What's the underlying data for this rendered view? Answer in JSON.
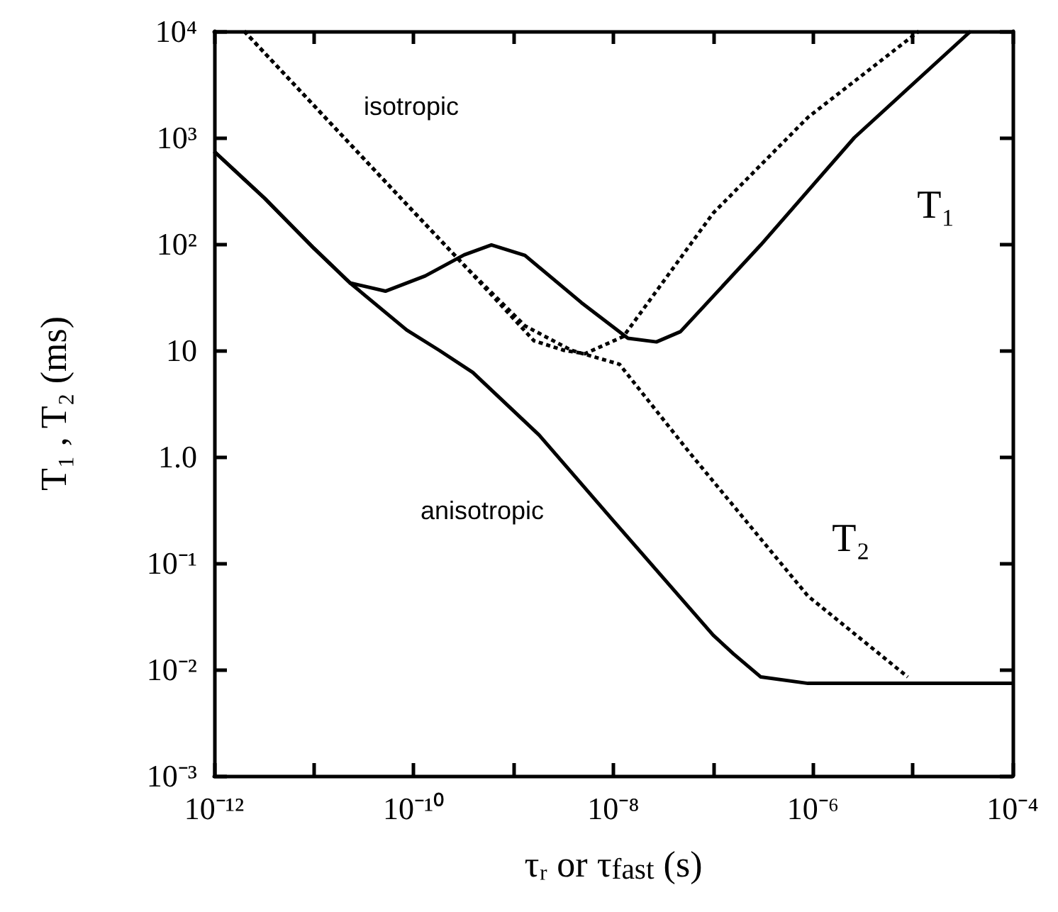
{
  "chart_data": {
    "type": "line",
    "xlabel": "τᵣ or τ$_{fast}$ (s)",
    "ylabel": "T₁ , T₂ (ms)",
    "log": "xy",
    "grid": false,
    "marker": "none",
    "xlim": [
      1e-12,
      0.0001
    ],
    "xticks": [
      {
        "value": 1e-12,
        "label": "10⁻¹²"
      },
      {
        "value": 1e-11,
        "label": null
      },
      {
        "value": 1e-10,
        "label": "10⁻¹⁰"
      },
      {
        "value": 1e-09,
        "label": null
      },
      {
        "value": 1e-08,
        "label": "10⁻⁸"
      },
      {
        "value": 1e-07,
        "label": null
      },
      {
        "value": 1e-06,
        "label": "10⁻⁶"
      },
      {
        "value": 1e-05,
        "label": null
      },
      {
        "value": 0.0001,
        "label": "10⁻⁴"
      }
    ],
    "ylim": [
      0.001,
      10000
    ],
    "yticks": [
      {
        "value": 0.001,
        "label": "10⁻³"
      },
      {
        "value": 0.01,
        "label": "10⁻²"
      },
      {
        "value": 0.1,
        "label": "10⁻¹"
      },
      {
        "value": 1,
        "label": "1.0"
      },
      {
        "value": 10,
        "label": "10"
      },
      {
        "value": 100,
        "label": "10²"
      },
      {
        "value": 1000,
        "label": "10³"
      },
      {
        "value": 10000,
        "label": "10⁴"
      }
    ],
    "series": [
      {
        "color": "#000000",
        "line_style": "solid",
        "x": [
          1e-12,
          3.2e-12,
          1e-11,
          2.3e-11,
          5.2e-11,
          1.3e-10,
          3.2e-10,
          6e-10,
          1.3e-09,
          4.8e-09,
          1.4e-08,
          2.7e-08,
          4.7e-08,
          3e-07,
          2.6e-06,
          3.8e-05
        ],
        "values": [
          741,
          269,
          91,
          43,
          36,
          50,
          79,
          98,
          78,
          28,
          13,
          12,
          15,
          98,
          1000,
          10000
        ]
      },
      {
        "color": "#000000",
        "line_style": "solid",
        "x": [
          1e-12,
          3.2e-12,
          1e-11,
          2.3e-11,
          8.5e-11,
          1.8e-10,
          3.9e-10,
          1.8e-09,
          1e-08,
          1e-07,
          1.6e-07,
          3e-07,
          8.9e-07,
          0.0001
        ],
        "values": [
          741,
          269,
          91,
          43,
          15.5,
          10,
          6.2,
          1.6,
          0.25,
          0.021,
          0.014,
          0.0085,
          0.0074,
          0.0074
        ]
      },
      {
        "color": "#000000",
        "line_style": "dashed",
        "x": [
          2e-12,
          1e-10,
          3.2e-10,
          1.6e-09,
          3.2e-09,
          5.2e-09,
          1.26e-08,
          1e-07,
          8.9e-07,
          1.15e-05
        ],
        "values": [
          10000,
          200,
          63,
          12.3,
          10,
          9.3,
          13.5,
          195,
          1550,
          10000
        ]
      },
      {
        "color": "#000000",
        "line_style": "dashed",
        "x": [
          2e-12,
          1e-10,
          3.2e-10,
          1.3e-09,
          3.8e-09,
          1.15e-08,
          5.9e-08,
          8.9e-07,
          8.9e-06
        ],
        "values": [
          10000,
          200,
          63,
          17,
          10,
          7.4,
          1.07,
          0.049,
          0.0085
        ]
      }
    ],
    "annotations": [
      "isotropic",
      "anisotropic",
      "T₁",
      "T₂"
    ]
  }
}
